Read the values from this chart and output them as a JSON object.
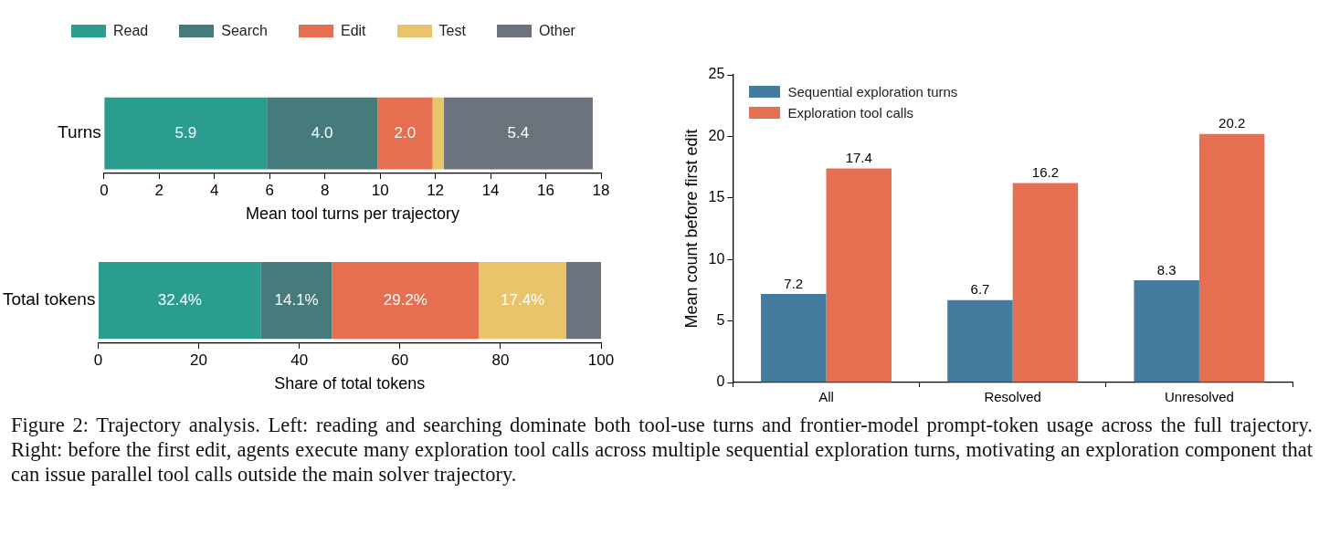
{
  "chart_data": [
    {
      "type": "bar",
      "orientation": "horizontal",
      "stacked": true,
      "categories": [
        "Turns"
      ],
      "xlabel": "Mean tool turns per trajectory",
      "xlim": [
        0,
        18
      ],
      "xticks": [
        0,
        2,
        4,
        6,
        8,
        10,
        12,
        14,
        16,
        18
      ],
      "legend": "top",
      "series": [
        {
          "name": "Read",
          "color": "#2a9d8f",
          "values": [
            5.9
          ],
          "value_labels": [
            "5.9"
          ]
        },
        {
          "name": "Search",
          "color": "#457b7b",
          "values": [
            4.0
          ],
          "value_labels": [
            "4.0"
          ]
        },
        {
          "name": "Edit",
          "color": "#e76f51",
          "values": [
            2.0
          ],
          "value_labels": [
            "2.0"
          ]
        },
        {
          "name": "Test",
          "color": "#e9c46a",
          "values": [
            0.4
          ],
          "value_labels": [
            null
          ]
        },
        {
          "name": "Other",
          "color": "#6c737d",
          "values": [
            5.4
          ],
          "value_labels": [
            "5.4"
          ]
        }
      ],
      "annotations": [
        "Figure 2: Trajectory analysis. Left: reading and searching dominate both tool-use turns and frontier-model prompt-token usage across the full trajectory. Right: before the first edit, agents execute many exploration tool calls across multiple sequential exploration turns, motivating an exploration component that can issue parallel tool calls outside the main solver trajectory."
      ]
    },
    {
      "type": "bar",
      "orientation": "horizontal",
      "stacked": true,
      "categories": [
        "Total tokens"
      ],
      "xlabel": "Share of total tokens",
      "xlim": [
        0,
        100
      ],
      "xticks": [
        0,
        20,
        40,
        60,
        80,
        100
      ],
      "series": [
        {
          "color": "#2a9d8f",
          "values": [
            32.4
          ],
          "value_labels": [
            "32.4%"
          ]
        },
        {
          "color": "#457b7b",
          "values": [
            14.1
          ],
          "value_labels": [
            "14.1%"
          ]
        },
        {
          "color": "#e76f51",
          "values": [
            29.2
          ],
          "value_labels": [
            "29.2%"
          ]
        },
        {
          "color": "#e9c46a",
          "values": [
            17.4
          ],
          "value_labels": [
            "17.4%"
          ]
        },
        {
          "color": "#6c737d",
          "values": [
            6.9
          ],
          "value_labels": [
            null
          ]
        }
      ]
    },
    {
      "type": "bar",
      "categories": [
        "All",
        "Resolved",
        "Unresolved"
      ],
      "ylabel": "Mean count before first edit",
      "ylim": [
        0,
        25
      ],
      "yticks": [
        0,
        5,
        10,
        15,
        20,
        25
      ],
      "legend": "top left",
      "data_labels": true,
      "series": [
        {
          "name": "Sequential exploration turns",
          "color": "#447c9f",
          "values": [
            7.2,
            6.7,
            8.3
          ]
        },
        {
          "name": "Exploration tool calls",
          "color": "#e76f51",
          "values": [
            17.4,
            16.2,
            20.2
          ]
        }
      ]
    }
  ]
}
